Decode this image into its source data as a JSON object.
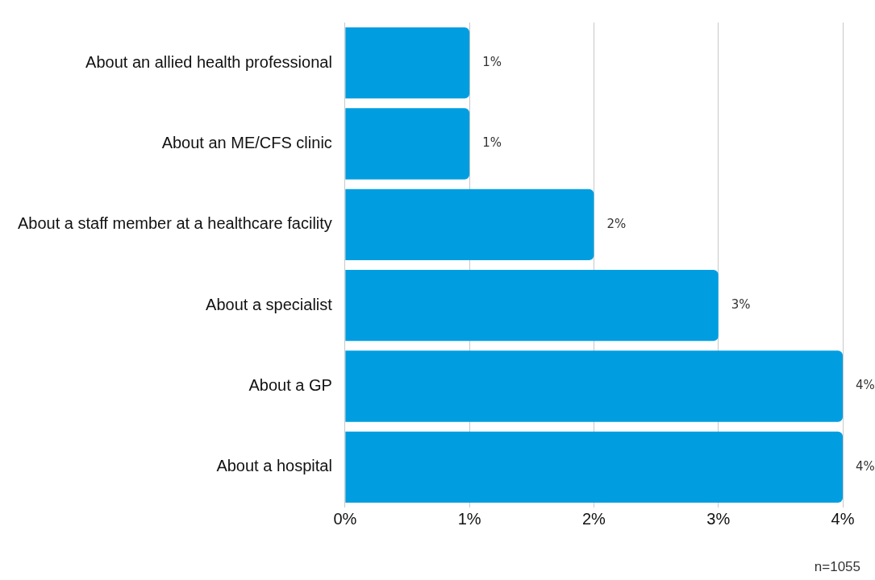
{
  "chart_data": {
    "type": "bar",
    "orientation": "horizontal",
    "categories": [
      "About an allied health professional",
      "About an ME/CFS clinic",
      "About a staff member at a healthcare facility",
      "About a specialist",
      "About a GP",
      "About a hospital"
    ],
    "values": [
      1,
      1,
      2,
      3,
      4,
      4
    ],
    "color": "#009ee0",
    "xlim": [
      0,
      4
    ],
    "xticks": [
      {
        "value": 0,
        "label": "0%"
      },
      {
        "value": 1,
        "label": "1%"
      },
      {
        "value": 2,
        "label": "2%"
      },
      {
        "value": 3,
        "label": "3%"
      },
      {
        "value": 4,
        "label": "4%"
      }
    ],
    "value_labels": [
      "1%",
      "1%",
      "2%",
      "3%",
      "4%",
      "4%"
    ],
    "grid": "x",
    "legend": false,
    "annotations": [
      "n=1055"
    ]
  }
}
